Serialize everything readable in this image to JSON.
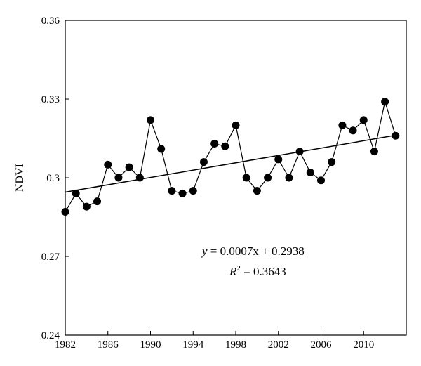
{
  "chart_data": {
    "type": "scatter",
    "title": "",
    "xlabel": "",
    "ylabel": "NDVI",
    "xlim": [
      1982,
      2014
    ],
    "ylim": [
      0.24,
      0.36
    ],
    "x_ticks": [
      1982,
      1986,
      1990,
      1994,
      1998,
      2002,
      2006,
      2010
    ],
    "x_tick_labels": [
      "1982",
      "1986",
      "1990",
      "1994",
      "1998",
      "2002",
      "2006",
      "2010"
    ],
    "y_ticks": [
      0.24,
      0.27,
      0.3,
      0.33,
      0.36
    ],
    "y_tick_labels": [
      "0.24",
      "0.27",
      "0.3",
      "0.33",
      "0.36"
    ],
    "grid": false,
    "series": [
      {
        "x": [
          1982,
          1983,
          1984,
          1985,
          1986,
          1987,
          1988,
          1989,
          1990,
          1991,
          1992,
          1993,
          1994,
          1995,
          1996,
          1997,
          1998,
          1999,
          2000,
          2001,
          2002,
          2003,
          2004,
          2005,
          2006,
          2007,
          2008,
          2009,
          2010,
          2011,
          2012,
          2013
        ],
        "y": [
          0.287,
          0.294,
          0.289,
          0.291,
          0.305,
          0.3,
          0.304,
          0.3,
          0.322,
          0.311,
          0.295,
          0.294,
          0.295,
          0.306,
          0.313,
          0.312,
          0.32,
          0.3,
          0.295,
          0.3,
          0.307,
          0.3,
          0.31,
          0.302,
          0.299,
          0.306,
          0.32,
          0.318,
          0.322,
          0.31,
          0.329,
          0.316
        ],
        "style": "line-with-filled-circle-markers",
        "color": "#000000"
      }
    ],
    "trendline": {
      "slope": 0.0007,
      "intercept": 0.2938,
      "x_range": [
        1982,
        2013
      ],
      "equation_lhs": "y",
      "equation_rhs": " = 0.0007x + 0.2938",
      "r2_lhs": "R",
      "r2_sup": "2",
      "r2_rhs": " = 0.3643"
    }
  }
}
